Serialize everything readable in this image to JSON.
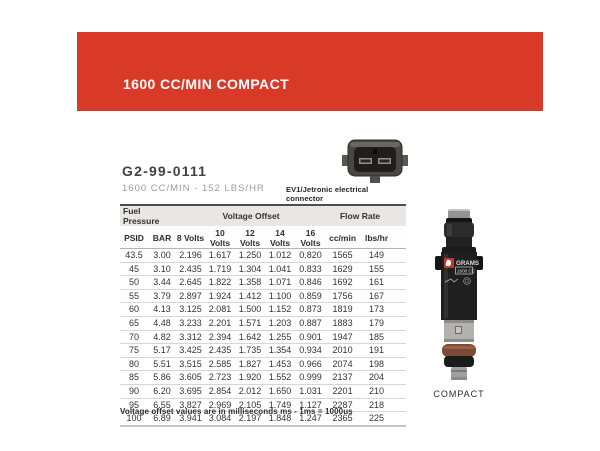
{
  "banner": {
    "title": "1600 CC/MIN COMPACT",
    "color": "#d93a28"
  },
  "product": {
    "part_number": "G2-99-0111",
    "subtitle": "1600 CC/MIN - 152 LBS/HR",
    "connector_caption": "EV1/Jetronic electrical connector",
    "injector_caption": "COMPACT",
    "injector_label_brand": "GRAMS",
    "injector_label_cc": "1600 CC"
  },
  "table": {
    "group_headers": [
      {
        "label": "Fuel Pressure",
        "span": 2
      },
      {
        "label": "Voltage Offset",
        "span": 5
      },
      {
        "label": "Flow Rate",
        "span": 2
      }
    ],
    "columns": [
      "PSID",
      "BAR",
      "8 Volts",
      "10 Volts",
      "12 Volts",
      "14 Volts",
      "16 Volts",
      "cc/min",
      "lbs/hr"
    ],
    "rows": [
      [
        "43.5",
        "3.00",
        "2.196",
        "1.617",
        "1.250",
        "1.012",
        "0.820",
        "1565",
        "149"
      ],
      [
        "45",
        "3.10",
        "2.435",
        "1.719",
        "1.304",
        "1.041",
        "0.833",
        "1629",
        "155"
      ],
      [
        "50",
        "3.44",
        "2.645",
        "1.822",
        "1.358",
        "1.071",
        "0.846",
        "1692",
        "161"
      ],
      [
        "55",
        "3.79",
        "2.897",
        "1.924",
        "1.412",
        "1.100",
        "0.859",
        "1756",
        "167"
      ],
      [
        "60",
        "4.13",
        "3.125",
        "2.081",
        "1.500",
        "1.152",
        "0.873",
        "1819",
        "173"
      ],
      [
        "65",
        "4.48",
        "3.233",
        "2.201",
        "1.571",
        "1.203",
        "0.887",
        "1883",
        "179"
      ],
      [
        "70",
        "4.82",
        "3.312",
        "2.394",
        "1.642",
        "1.255",
        "0.901",
        "1947",
        "185"
      ],
      [
        "75",
        "5.17",
        "3.425",
        "2.435",
        "1.735",
        "1.354",
        "0.934",
        "2010",
        "191"
      ],
      [
        "80",
        "5.51",
        "3.515",
        "2.585",
        "1.827",
        "1.453",
        "0.966",
        "2074",
        "198"
      ],
      [
        "85",
        "5.86",
        "3.605",
        "2.723",
        "1.920",
        "1.552",
        "0.999",
        "2137",
        "204"
      ],
      [
        "90",
        "6.20",
        "3.695",
        "2.854",
        "2.012",
        "1.650",
        "1.031",
        "2201",
        "210"
      ],
      [
        "95",
        "6.55",
        "3.827",
        "2.969",
        "2.105",
        "1.749",
        "1.127",
        "2287",
        "218"
      ],
      [
        "100",
        "6.89",
        "3.941",
        "3.084",
        "2.197",
        "1.848",
        "1.247",
        "2365",
        "225"
      ]
    ]
  },
  "footnote": "Voltage offset values are in milliseconds ms - 1ms = 1000us"
}
